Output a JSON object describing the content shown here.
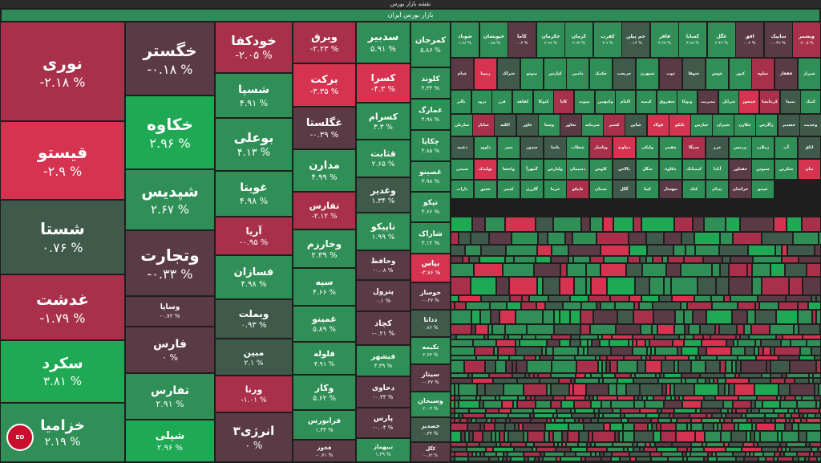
{
  "header": {
    "title": "نقشه بازار بورس",
    "market": "بازار بورس ایران"
  },
  "colors": {
    "strong_up": "#1fa954",
    "up": "#2f8f56",
    "neutral_up": "#3f5a4a",
    "neutral_down": "#5a3a44",
    "down": "#a8304a",
    "strong_down": "#d5334f"
  },
  "watermark": "Eghtesadonline",
  "columns": [
    {
      "w": 156,
      "tiles": [
        {
          "n": "نوری",
          "p": "-۲.۱۸ %",
          "h": 124,
          "c": "down"
        },
        {
          "n": "قیستو",
          "p": "-۲.۹ %",
          "h": 98,
          "c": "strong_down"
        },
        {
          "n": "شستا",
          "p": "۰.۷۶ %",
          "h": 93,
          "c": "neutral_up"
        },
        {
          "n": "غدشت",
          "p": "-۱.۷۹ %",
          "h": 82,
          "c": "down"
        },
        {
          "n": "سکرد",
          "p": "۳.۸۱ %",
          "h": 78,
          "c": "strong_up"
        },
        {
          "n": "خزامیا",
          "p": "۲.۱۹ %",
          "h": 74,
          "c": "up"
        }
      ]
    },
    {
      "w": 112,
      "tiles": [
        {
          "n": "خگستر",
          "p": "-۰.۱۸ %",
          "h": 92,
          "c": "neutral_down"
        },
        {
          "n": "خکاوه",
          "p": "۲.۹۶ %",
          "h": 92,
          "c": "strong_up"
        },
        {
          "n": "شپدیس",
          "p": "۲.۶۷ %",
          "h": 76,
          "c": "up"
        },
        {
          "n": "وتجارت",
          "p": "-۰.۳۳ %",
          "h": 82,
          "c": "neutral_down"
        },
        {
          "n": "وساپا",
          "p": "-۰.۷۲ %",
          "h": 38,
          "c": "neutral_down"
        },
        {
          "n": "فارس",
          "p": "۰ %",
          "h": 58,
          "c": "neutral_down"
        },
        {
          "n": "تفارس",
          "p": "۲.۹۱ %",
          "h": 58,
          "c": "up"
        },
        {
          "n": "شپلی",
          "p": "۲.۹۶ %",
          "h": 53,
          "c": "strong_up"
        }
      ]
    },
    {
      "w": 97,
      "tiles": [
        {
          "n": "خودکفا",
          "p": "-۲.۰۵ %",
          "h": 64,
          "c": "down"
        },
        {
          "n": "شسپا",
          "p": "۴.۹۱ %",
          "h": 56,
          "c": "up"
        },
        {
          "n": "بوعلی",
          "p": "۴.۱۳ %",
          "h": 66,
          "c": "up"
        },
        {
          "n": "غویتا",
          "p": "۴.۹۸ %",
          "h": 57,
          "c": "up"
        },
        {
          "n": "آریا",
          "p": "-۰.۹۵ %",
          "h": 48,
          "c": "down"
        },
        {
          "n": "فسازان",
          "p": "۴.۹۸ %",
          "h": 55,
          "c": "up"
        },
        {
          "n": "وبملت",
          "p": "۰.۹۳ %",
          "h": 49,
          "c": "neutral_up"
        },
        {
          "n": "مبین",
          "p": "۲.۱ %",
          "h": 46,
          "c": "neutral_up"
        },
        {
          "n": "ورنا",
          "p": "-۱.۰۱ %",
          "h": 46,
          "c": "down"
        },
        {
          "n": "انرژی۳",
          "p": "۰ %",
          "h": 62,
          "c": "neutral_down"
        }
      ]
    },
    {
      "w": 79,
      "tiles": [
        {
          "n": "وبرق",
          "p": "-۲.۲۳ %",
          "h": 51,
          "c": "down"
        },
        {
          "n": "برکت",
          "p": "-۳.۳۵ %",
          "h": 53,
          "c": "strong_down"
        },
        {
          "n": "غگلستا",
          "p": "-۰.۳۹ %",
          "h": 52,
          "c": "neutral_down"
        },
        {
          "n": "مدارن",
          "p": "۴.۹۹ %",
          "h": 52,
          "c": "up"
        },
        {
          "n": "تفارس",
          "p": "-۲.۱۲ %",
          "h": 46,
          "c": "down"
        },
        {
          "n": "وخارزم",
          "p": "۲.۳۹ %",
          "h": 47,
          "c": "up"
        },
        {
          "n": "سپه",
          "p": "۴.۶۶ %",
          "h": 46,
          "c": "up"
        },
        {
          "n": "غمینو",
          "p": "۵.۸۹ %",
          "h": 44,
          "c": "up"
        },
        {
          "n": "فلوله",
          "p": "۴.۹۱ %",
          "h": 40,
          "c": "up"
        },
        {
          "n": "وکار",
          "p": "۵.۶۲ %",
          "h": 43,
          "c": "up"
        },
        {
          "n": "فرابورس",
          "p": "۱.۳۴ %",
          "h": 36,
          "c": "up"
        },
        {
          "n": "فخوز",
          "p": "-۰.۷۱ %",
          "h": 29,
          "c": "neutral_down"
        }
      ]
    },
    {
      "w": 68,
      "tiles": [
        {
          "n": "سدبیر",
          "p": "۵.۹۱ %",
          "h": 50,
          "c": "up"
        },
        {
          "n": "کسرا",
          "p": "-۴.۳ %",
          "h": 47,
          "c": "strong_down"
        },
        {
          "n": "کسرام",
          "p": "۳.۳ %",
          "h": 44,
          "c": "up"
        },
        {
          "n": "قثابت",
          "p": "۲.۶۵ %",
          "h": 45,
          "c": "up"
        },
        {
          "n": "وغدیر",
          "p": "۱.۳۴ %",
          "h": 42,
          "c": "neutral_up"
        },
        {
          "n": "تاپیکو",
          "p": "۱.۹۹ %",
          "h": 45,
          "c": "up"
        },
        {
          "n": "وحافظ",
          "p": "-۰.۰۸ %",
          "h": 36,
          "c": "neutral_down"
        },
        {
          "n": "پترول",
          "p": "۰.۱ %",
          "h": 38,
          "c": "neutral_down"
        },
        {
          "n": "کچاد",
          "p": "-۰.۲۱ %",
          "h": 40,
          "c": "neutral_down"
        },
        {
          "n": "فیشهر",
          "p": "۴.۳۹ %",
          "h": 38,
          "c": "up"
        },
        {
          "n": "دحاوی",
          "p": "-۰.۳۳ %",
          "h": 38,
          "c": "neutral_down"
        },
        {
          "n": "پارس",
          "p": "-۰.۰۴ %",
          "h": 37,
          "c": "neutral_down"
        },
        {
          "n": "تیپهماز",
          "p": "۱.۳۹ %",
          "h": 29,
          "c": "up"
        }
      ]
    },
    {
      "w": 50,
      "tiles": [
        {
          "n": "کمرجان",
          "p": "۵.۸۶ %",
          "h": 50,
          "c": "up"
        },
        {
          "n": "کلوند",
          "p": "۴.۳۳ %",
          "h": 34,
          "c": "up"
        },
        {
          "n": "غمارگ",
          "p": "۴.۹۸ %",
          "h": 34,
          "c": "up"
        },
        {
          "n": "چکاپا",
          "p": "۳.۸۵ %",
          "h": 34,
          "c": "up"
        },
        {
          "n": "غصینو",
          "p": "۳.۹۸ %",
          "h": 33,
          "c": "up"
        },
        {
          "n": "تپکو",
          "p": "۳.۶۶ %",
          "h": 33,
          "c": "up"
        },
        {
          "n": "شاراک",
          "p": "۳.۱۲ %",
          "h": 34,
          "c": "up"
        },
        {
          "n": "بپاس",
          "p": "-۳.۷۶ %",
          "h": 32,
          "c": "strong_down"
        },
        {
          "n": "خوساز",
          "p": "-۰.۳۷ %",
          "h": 30,
          "c": "neutral_down"
        },
        {
          "n": "ددانا",
          "p": "۰.۸۶ %",
          "h": 30,
          "c": "neutral_up"
        },
        {
          "n": "تکیمه",
          "p": "۲.۶۳ %",
          "h": 30,
          "c": "up"
        },
        {
          "n": "سیتاز",
          "p": "-۰.۳۷ %",
          "h": 30,
          "c": "neutral_down"
        },
        {
          "n": "وسبحان",
          "p": "۲.۰۳ %",
          "h": 28,
          "c": "up"
        },
        {
          "n": "خصدیر",
          "p": "۰.۳۳ %",
          "h": 27,
          "c": "neutral_up"
        },
        {
          "n": "کگل",
          "p": "-۰.۶۲ %",
          "h": 24,
          "c": "neutral_down"
        }
      ]
    }
  ],
  "mid_top_row": [
    "شوباد",
    "خپویشان",
    "کاما",
    "خکرمان",
    "کرمان",
    "کفرب",
    "جم پیلن",
    "فافر",
    "کسایا",
    "غگل",
    "افق",
    "ساپیک",
    "ویشمر"
  ],
  "mid_top_pct": [
    "۱.۹۶ %",
    "۰.۹۸ %",
    "-۰.۳ %",
    "۲.۹۹ %",
    "۲.۹۲ %",
    "۳.۹ %",
    "۰.۱۴ %",
    "۳.۶۷ %",
    "۴.۹۹ %",
    "۲.۴۶ %",
    "-۰.۲ %",
    "-۰.۳۹ %",
    "-۲.۰۵ %"
  ],
  "mid_top_colors": [
    "up",
    "up",
    "neutral_down",
    "up",
    "up",
    "up",
    "neutral_up",
    "up",
    "up",
    "up",
    "neutral_down",
    "neutral_down",
    "down"
  ],
  "small_grid": {
    "names": [
      "غدام",
      "رمپنا",
      "ختراک",
      "بموتو",
      "کپارس",
      "دامین",
      "حکمک",
      "خریخت",
      "شپهرن",
      "ذوب",
      "ختوقا",
      "غوش",
      "کنور",
      "ساوه",
      "فقفاز",
      "شیراز",
      "بالبر",
      "ترود",
      "فرز",
      "کفاهد",
      "کتوکا",
      "کاپا",
      "بپیوند",
      "وکبهمن",
      "اکتام",
      "کیمیه",
      "سفروق",
      "وتوکا",
      "مدیریت",
      "شرانل",
      "خمحور",
      "کرمانشا",
      "بمیدا",
      "کنتک",
      "ساربلن",
      "ساباز",
      "اکلیه",
      "خاور",
      "وسنا",
      "تخاور",
      "سرمایه",
      "کسیر",
      "شاین",
      "فولاد",
      "تایکو",
      "خپارس",
      "شیران",
      "چکارن",
      "زاگرس",
      "خصدیر",
      "وخدیت",
      "دعبید",
      "داوود",
      "سیر",
      "سدور",
      "پاسا",
      "شطاب",
      "وپاسار",
      "دماوند",
      "ولیکی",
      "چفیبر",
      "سمگا",
      "خرز",
      "پردیس",
      "زملارد",
      "آپ",
      "اتاق",
      "شیمی",
      "تولیدک",
      "واحصا",
      "گمهرآ",
      "ولپارس",
      "دسیمان",
      "کاوش",
      "بالاس",
      "شگل",
      "چکاوه",
      "کیمیاتک",
      "آبادا",
      "خفناور",
      "سبوتن",
      "شکربن",
      "نیان",
      "داراب",
      "خعیق",
      "کپنیر",
      "گازرن",
      "خرما",
      "تاپیکو",
      "بجمان",
      "گگل",
      "کپیا",
      "ثبهساز",
      "کباد",
      "پیدام",
      "خراسان",
      "غپینو"
    ],
    "sm_colors": [
      "neutral_down",
      "strong_down",
      "neutral_up",
      "up",
      "up",
      "up",
      "up",
      "neutral_up",
      "up",
      "neutral_down",
      "neutral_up",
      "up",
      "up",
      "down",
      "neutral_down",
      "up",
      "up",
      "up",
      "up",
      "up",
      "up",
      "down",
      "up",
      "up",
      "up",
      "up",
      "up",
      "up",
      "neutral_down",
      "up",
      "strong_down",
      "down",
      "neutral_up",
      "up",
      "up",
      "down",
      "neutral_up",
      "neutral_up",
      "up",
      "neutral_down",
      "up",
      "down",
      "neutral_up",
      "strong_down",
      "strong_down",
      "up",
      "up",
      "up",
      "up",
      "neutral_up",
      "neutral_up",
      "neutral_up",
      "up",
      "up",
      "neutral_up",
      "neutral_up",
      "up",
      "down",
      "strong_down",
      "up",
      "up",
      "down",
      "neutral_up",
      "up",
      "up",
      "up",
      "neutral_up",
      "up",
      "strong_down",
      "up",
      "up",
      "up",
      "up",
      "up",
      "neutral_up",
      "up",
      "up",
      "up",
      "up",
      "neutral_down",
      "up",
      "up",
      "strong_down",
      "up",
      "up",
      "up",
      "up",
      "up",
      "down",
      "up",
      "neutral_up",
      "up",
      "neutral_down",
      "up",
      "up",
      "neutral_down",
      "up",
      "up",
      "up"
    ]
  }
}
